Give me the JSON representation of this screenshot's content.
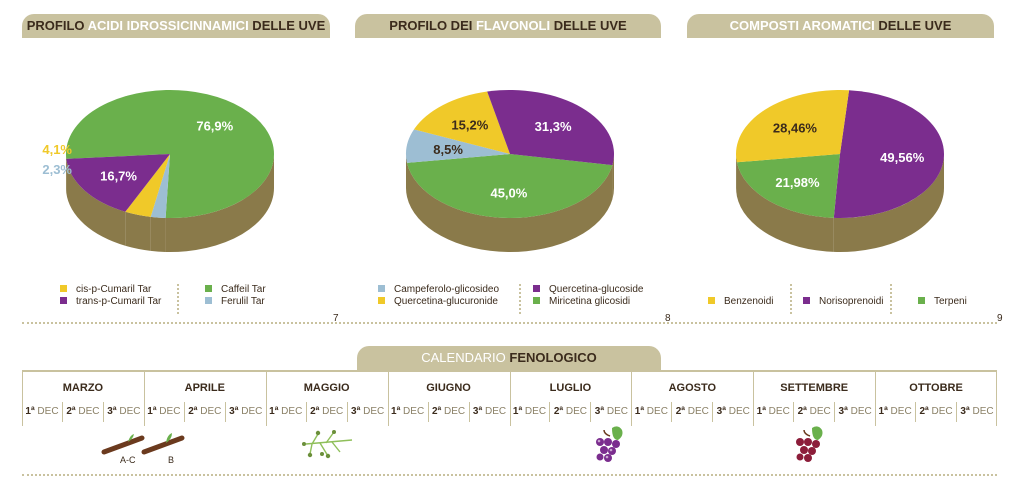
{
  "charts": [
    {
      "title_pre": "PROFILO ",
      "title_accent": "ACIDI IDROSSICINNAMICI",
      "title_post": " DELLE UVE",
      "page": "7"
    },
    {
      "title_pre": "PROFILO DEI ",
      "title_accent": "FLAVONOLI",
      "title_post": " DELLE UVE",
      "page": "8"
    },
    {
      "title_pre": "",
      "title_accent": "COMPOSTI AROMATICI",
      "title_post": " DELLE UVE",
      "page": "9"
    }
  ],
  "chart_data": [
    {
      "type": "pie",
      "title": "PROFILO ACIDI IDROSSICINNAMICI DELLE UVE",
      "slices": [
        {
          "name": "Caffeil Tar",
          "value": 76.9,
          "label": "76,9%",
          "color": "#6ab04c"
        },
        {
          "name": "Ferulil Tar",
          "value": 2.3,
          "label": "2,3%",
          "color": "#9dbed3"
        },
        {
          "name": "cis-p-Cumaril Tar",
          "value": 4.1,
          "label": "4,1%",
          "color": "#f0c929"
        },
        {
          "name": "trans-p-Cumaril Tar",
          "value": 16.7,
          "label": "16,7%",
          "color": "#7b2d8e"
        }
      ]
    },
    {
      "type": "pie",
      "title": "PROFILO DEI FLAVONOLI DELLE UVE",
      "slices": [
        {
          "name": "Miricetina glicosidi",
          "value": 45.0,
          "label": "45,0%",
          "color": "#6ab04c"
        },
        {
          "name": "Campeferolo-glicosideo",
          "value": 8.5,
          "label": "8,5%",
          "color": "#9dbed3"
        },
        {
          "name": "Quercetina-glucuronide",
          "value": 15.2,
          "label": "15,2%",
          "color": "#f0c929"
        },
        {
          "name": "Quercetina-glucoside",
          "value": 31.3,
          "label": "31,3%",
          "color": "#7b2d8e"
        }
      ]
    },
    {
      "type": "pie",
      "title": "COMPOSTI AROMATICI DELLE UVE",
      "slices": [
        {
          "name": "Norisoprenoidi",
          "value": 49.56,
          "label": "49,56%",
          "color": "#7b2d8e"
        },
        {
          "name": "Terpeni",
          "value": 21.98,
          "label": "21,98%",
          "color": "#6ab04c"
        },
        {
          "name": "Benzenoidi",
          "value": 28.46,
          "label": "28,46%",
          "color": "#f0c929"
        }
      ]
    }
  ],
  "legends": [
    [
      {
        "label": "cis-p-Cumaril Tar",
        "color": "#f0c929"
      },
      {
        "label": "trans-p-Cumaril Tar",
        "color": "#7b2d8e"
      },
      {
        "label": "Caffeil Tar",
        "color": "#6ab04c"
      },
      {
        "label": "Ferulil Tar",
        "color": "#9dbed3"
      }
    ],
    [
      {
        "label": "Campeferolo-glicosideo",
        "color": "#9dbed3"
      },
      {
        "label": "Quercetina-glucuronide",
        "color": "#f0c929"
      },
      {
        "label": "Quercetina-glucoside",
        "color": "#7b2d8e"
      },
      {
        "label": "Miricetina glicosidi",
        "color": "#6ab04c"
      }
    ],
    [
      {
        "label": "Benzenoidi",
        "color": "#f0c929"
      },
      {
        "label": "Norisoprenoidi",
        "color": "#7b2d8e"
      },
      {
        "label": "Terpeni",
        "color": "#6ab04c"
      }
    ]
  ],
  "calendar": {
    "title_pre": "CALENDARIO ",
    "title_accent": "FENOLOGICO",
    "dec_ord": [
      "1ª",
      "2ª",
      "3ª"
    ],
    "dec_word": "DEC",
    "months": [
      "MARZO",
      "APRILE",
      "MAGGIO",
      "GIUGNO",
      "LUGLIO",
      "AGOSTO",
      "SETTEMBRE",
      "OTTOBRE"
    ],
    "phase_labels": {
      "bud_ac": "A-C",
      "bud_b": "B"
    },
    "icons": [
      "budding-branch-icon",
      "flowering-icon",
      "veraison-grape-icon",
      "ripe-grape-icon"
    ]
  },
  "colors": {
    "banner": "#c9c29f",
    "text": "#3b2b1c",
    "purple": "#7b2d8e",
    "green": "#6ab04c",
    "yellow": "#f0c929",
    "blue": "#9dbed3"
  }
}
